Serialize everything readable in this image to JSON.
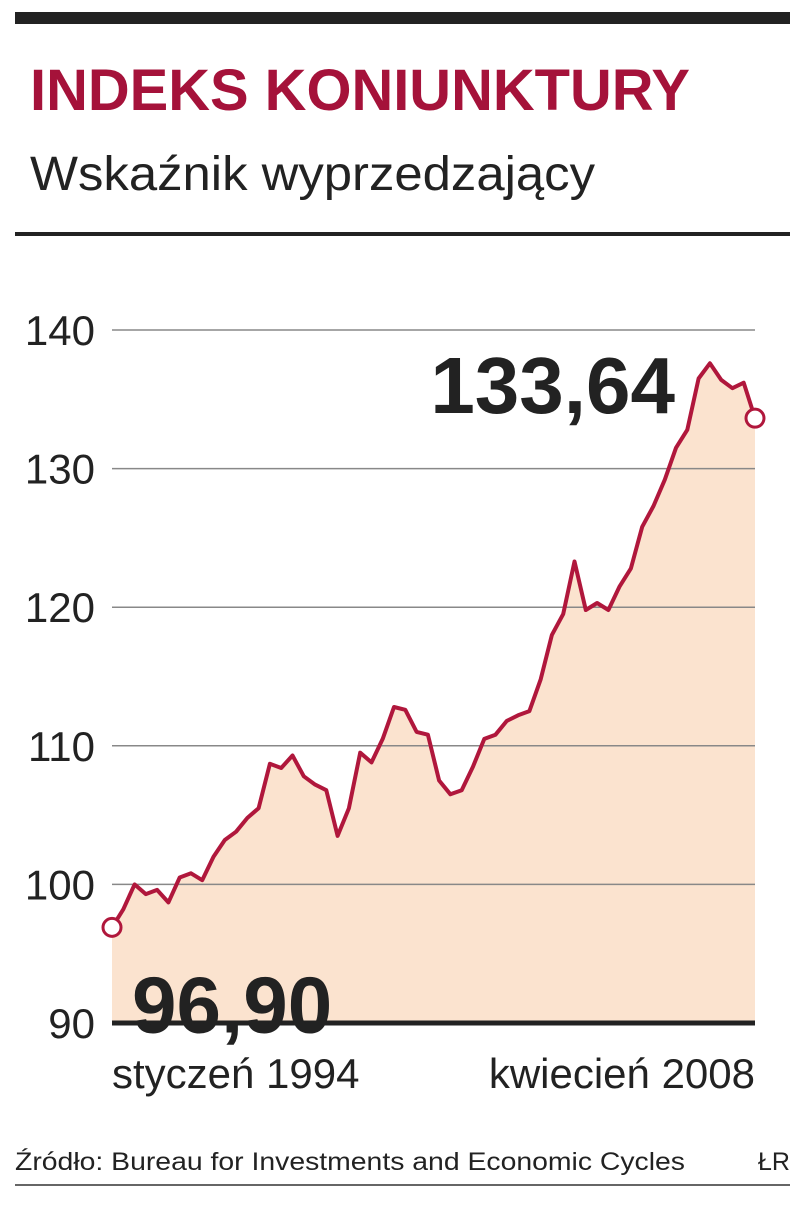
{
  "chart_data": {
    "type": "area",
    "title": "INDEKS KONIUNKTURY",
    "subtitle": "Wskaźnik wyprzedzający",
    "source": "Źródło: Bureau for Investments and Economic Cycles",
    "credit": "ŁR",
    "categories": [
      "styczeń 1994",
      null,
      null,
      null,
      null,
      null,
      null,
      null,
      null,
      null,
      null,
      null,
      null,
      null,
      null,
      null,
      null,
      null,
      null,
      null,
      null,
      null,
      null,
      null,
      null,
      null,
      null,
      null,
      null,
      null,
      null,
      null,
      null,
      null,
      null,
      null,
      null,
      null,
      null,
      null,
      null,
      null,
      null,
      null,
      null,
      null,
      null,
      null,
      null,
      null,
      null,
      null,
      null,
      null,
      null,
      null,
      null,
      "kwiecień 2008"
    ],
    "values": [
      96.9,
      98.2,
      100.0,
      99.3,
      99.6,
      98.7,
      100.5,
      100.8,
      100.3,
      102.0,
      103.2,
      103.8,
      104.8,
      105.5,
      108.7,
      108.4,
      109.3,
      107.8,
      107.2,
      106.8,
      103.5,
      105.5,
      109.5,
      108.8,
      110.5,
      112.8,
      112.6,
      111.0,
      110.8,
      107.5,
      106.5,
      106.8,
      108.5,
      110.5,
      110.8,
      111.8,
      112.2,
      112.5,
      114.8,
      118.0,
      119.5,
      123.3,
      119.8,
      120.3,
      119.8,
      121.5,
      122.8,
      125.8,
      127.3,
      129.2,
      131.5,
      132.8,
      136.5,
      137.6,
      136.4,
      135.8,
      136.2,
      133.64
    ],
    "value_labels": [
      "96,90",
      null,
      null,
      null,
      null,
      null,
      null,
      null,
      null,
      null,
      null,
      null,
      null,
      null,
      null,
      null,
      null,
      null,
      null,
      null,
      null,
      null,
      null,
      null,
      null,
      null,
      null,
      null,
      null,
      null,
      null,
      null,
      null,
      null,
      null,
      null,
      null,
      null,
      null,
      null,
      null,
      null,
      null,
      null,
      null,
      null,
      null,
      null,
      null,
      null,
      null,
      null,
      null,
      null,
      null,
      null,
      null,
      "133,64"
    ],
    "color": "#b0173c",
    "fill": "#fbe3cf",
    "ylim": [
      90,
      140
    ],
    "yticks": [
      90,
      100,
      110,
      120,
      130,
      140
    ],
    "grid": true
  }
}
